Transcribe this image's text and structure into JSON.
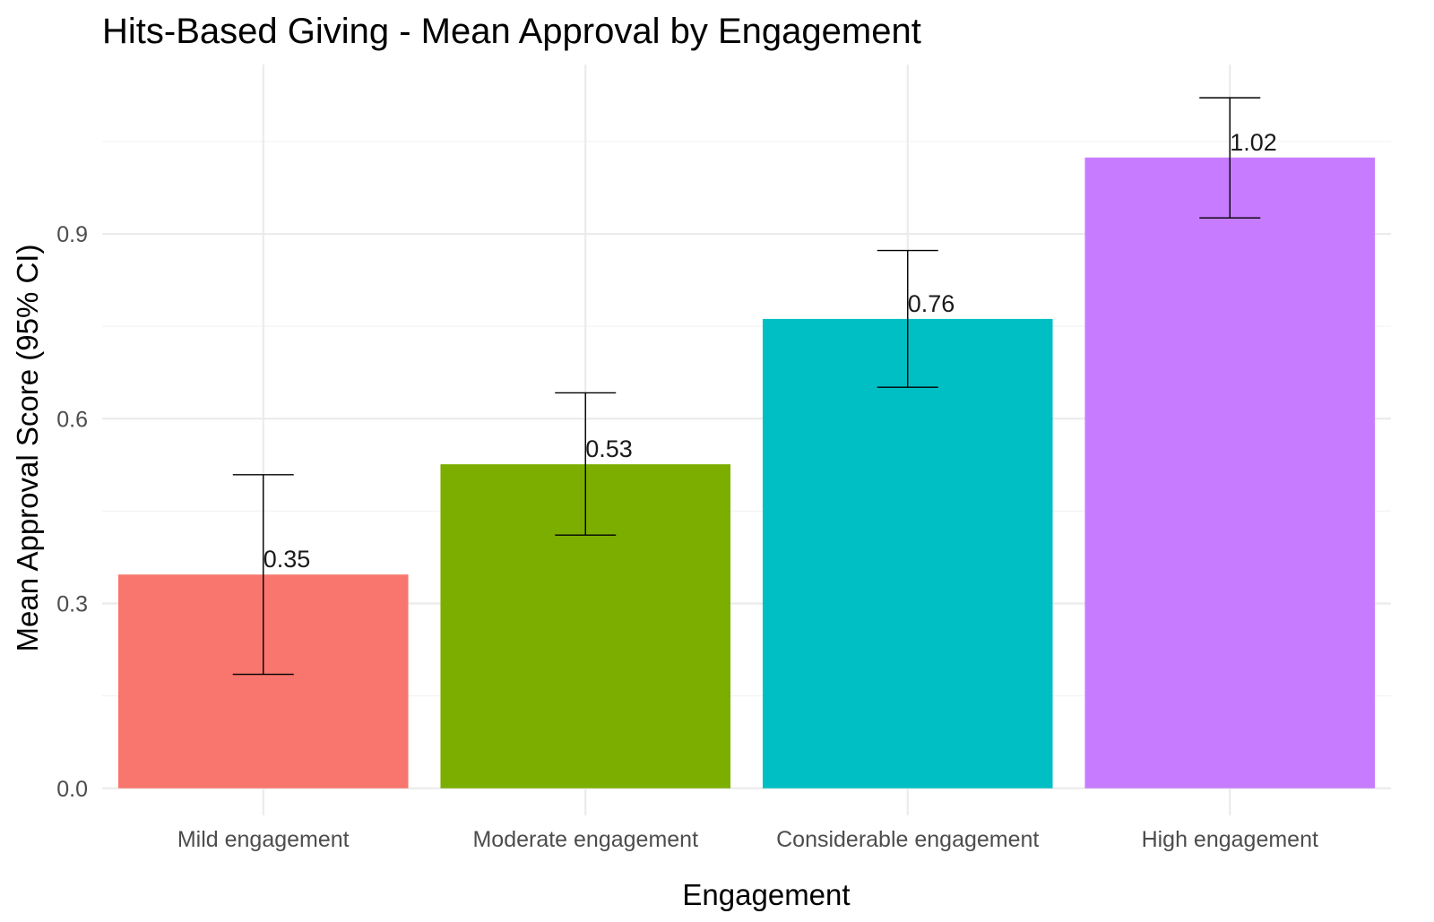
{
  "chart_data": {
    "type": "bar",
    "title": "Hits-Based Giving - Mean Approval by Engagement",
    "xlabel": "Engagement",
    "ylabel": "Mean Approval Score (95% CI)",
    "categories": [
      "Mild engagement",
      "Moderate engagement",
      "Considerable engagement",
      "High engagement"
    ],
    "values": [
      0.347,
      0.526,
      0.762,
      1.024
    ],
    "value_labels": [
      "0.35",
      "0.53",
      "0.76",
      "1.02"
    ],
    "ci_lower": [
      0.185,
      0.411,
      0.651,
      0.926
    ],
    "ci_upper": [
      0.509,
      0.642,
      0.873,
      1.121
    ],
    "colors": [
      "#F8766D",
      "#7CAE00",
      "#00BFC4",
      "#C77CFF"
    ],
    "ylim": [
      -0.044,
      1.175
    ],
    "yticks": [
      0.0,
      0.3,
      0.6,
      0.9
    ],
    "ytick_labels": [
      "0.0",
      "0.3",
      "0.6",
      "0.9"
    ],
    "grid": true,
    "legend": "none"
  }
}
